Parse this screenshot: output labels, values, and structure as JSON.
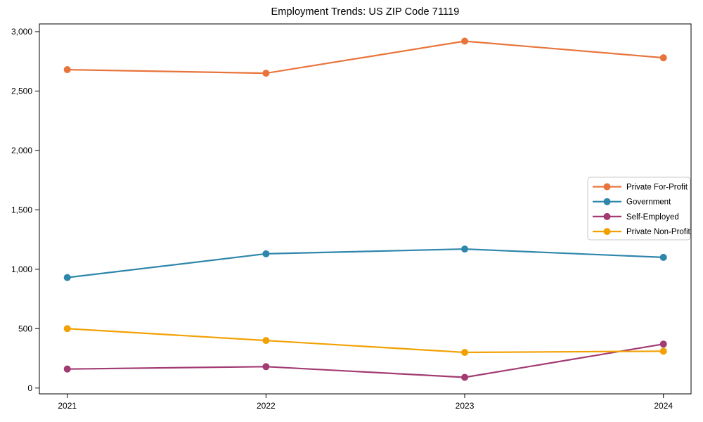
{
  "chart_data": {
    "type": "line",
    "title": "Employment Trends: US ZIP Code 71119",
    "categories": [
      "2021",
      "2022",
      "2023",
      "2024"
    ],
    "series": [
      {
        "name": "Private For-Profit",
        "color": "#E8743B",
        "values": [
          2680,
          2650,
          2920,
          2780
        ]
      },
      {
        "name": "Government",
        "color": "#2E86AB",
        "values": [
          930,
          1130,
          1170,
          1100
        ]
      },
      {
        "name": "Self-Employed",
        "color": "#A23B72",
        "values": [
          160,
          180,
          90,
          370
        ]
      },
      {
        "name": "Private Non-Profit",
        "color": "#F2A104",
        "values": [
          500,
          400,
          300,
          310
        ]
      }
    ],
    "xlabel": "",
    "ylabel": "",
    "ylim": [
      0,
      3000
    ],
    "yticks": [
      0,
      500,
      1000,
      1500,
      2000,
      2500,
      3000
    ],
    "ytick_labels": [
      "0",
      "500",
      "1,000",
      "1,500",
      "2,000",
      "2,500",
      "3,000"
    ],
    "grid": false,
    "legend_position": "center-right",
    "marker": "circle",
    "axis_color": "#000000",
    "legend_border_color": "#c9c9c9",
    "background_color": "#ffffff"
  }
}
